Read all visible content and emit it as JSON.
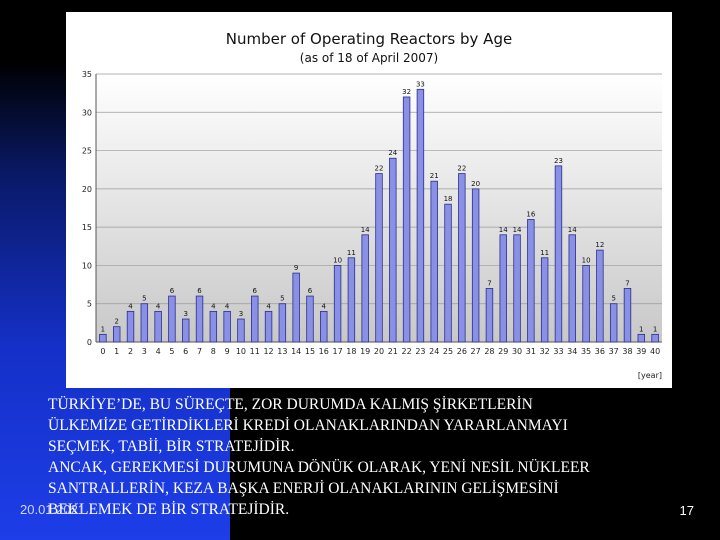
{
  "chart_data": {
    "type": "bar",
    "title": "Number of Operating Reactors by Age",
    "subtitle": "(as of 18 of April 2007)",
    "xlabel": "[year]",
    "ylabel": "",
    "ylim": [
      0,
      35
    ],
    "yticks": [
      0,
      5,
      10,
      15,
      20,
      25,
      30,
      35
    ],
    "grid": true,
    "categories": [
      "0",
      "1",
      "2",
      "3",
      "4",
      "5",
      "6",
      "7",
      "8",
      "9",
      "10",
      "11",
      "12",
      "13",
      "14",
      "15",
      "16",
      "17",
      "18",
      "19",
      "20",
      "21",
      "22",
      "23",
      "24",
      "25",
      "26",
      "27",
      "28",
      "29",
      "30",
      "31",
      "32",
      "33",
      "34",
      "35",
      "36",
      "37",
      "38",
      "39",
      "40"
    ],
    "values": [
      1,
      2,
      4,
      5,
      4,
      6,
      3,
      6,
      4,
      4,
      3,
      6,
      4,
      5,
      9,
      6,
      4,
      10,
      11,
      14,
      22,
      24,
      32,
      33,
      21,
      18,
      22,
      20,
      7,
      14,
      14,
      16,
      11,
      23,
      14,
      10,
      12,
      5,
      7,
      1,
      1
    ],
    "colors": {
      "bar": "#8a90e6",
      "bar_edge": "#2a2f8a",
      "plot_top": "#ffffff",
      "plot_bottom": "#c8c8c8"
    }
  },
  "body_text": {
    "lines": [
      "TÜRKİYE’DE, BU SÜREÇTE, ZOR DURUMDA KALMIŞ ŞİRKETLERİN",
      "ÜLKEMİZE GETİRDİKLERİ KREDİ OLANAKLARINDAN YARARLANMAYI",
      "SEÇMEK, TABİİ, BİR STRATEJİDİR.",
      "ANCAK, GEREKMESİ DURUMUNA DÖNÜK OLARAK, YENİ NESİL NÜKLEER",
      "SANTRALLERİN, KEZA BAŞKA ENERJİ OLANAKLARININ GELİŞMESİNİ",
      "BEKLEMEK DE BİR STRATEJİDİR."
    ]
  },
  "footer": {
    "date": "20.01.2021",
    "page": "17"
  }
}
